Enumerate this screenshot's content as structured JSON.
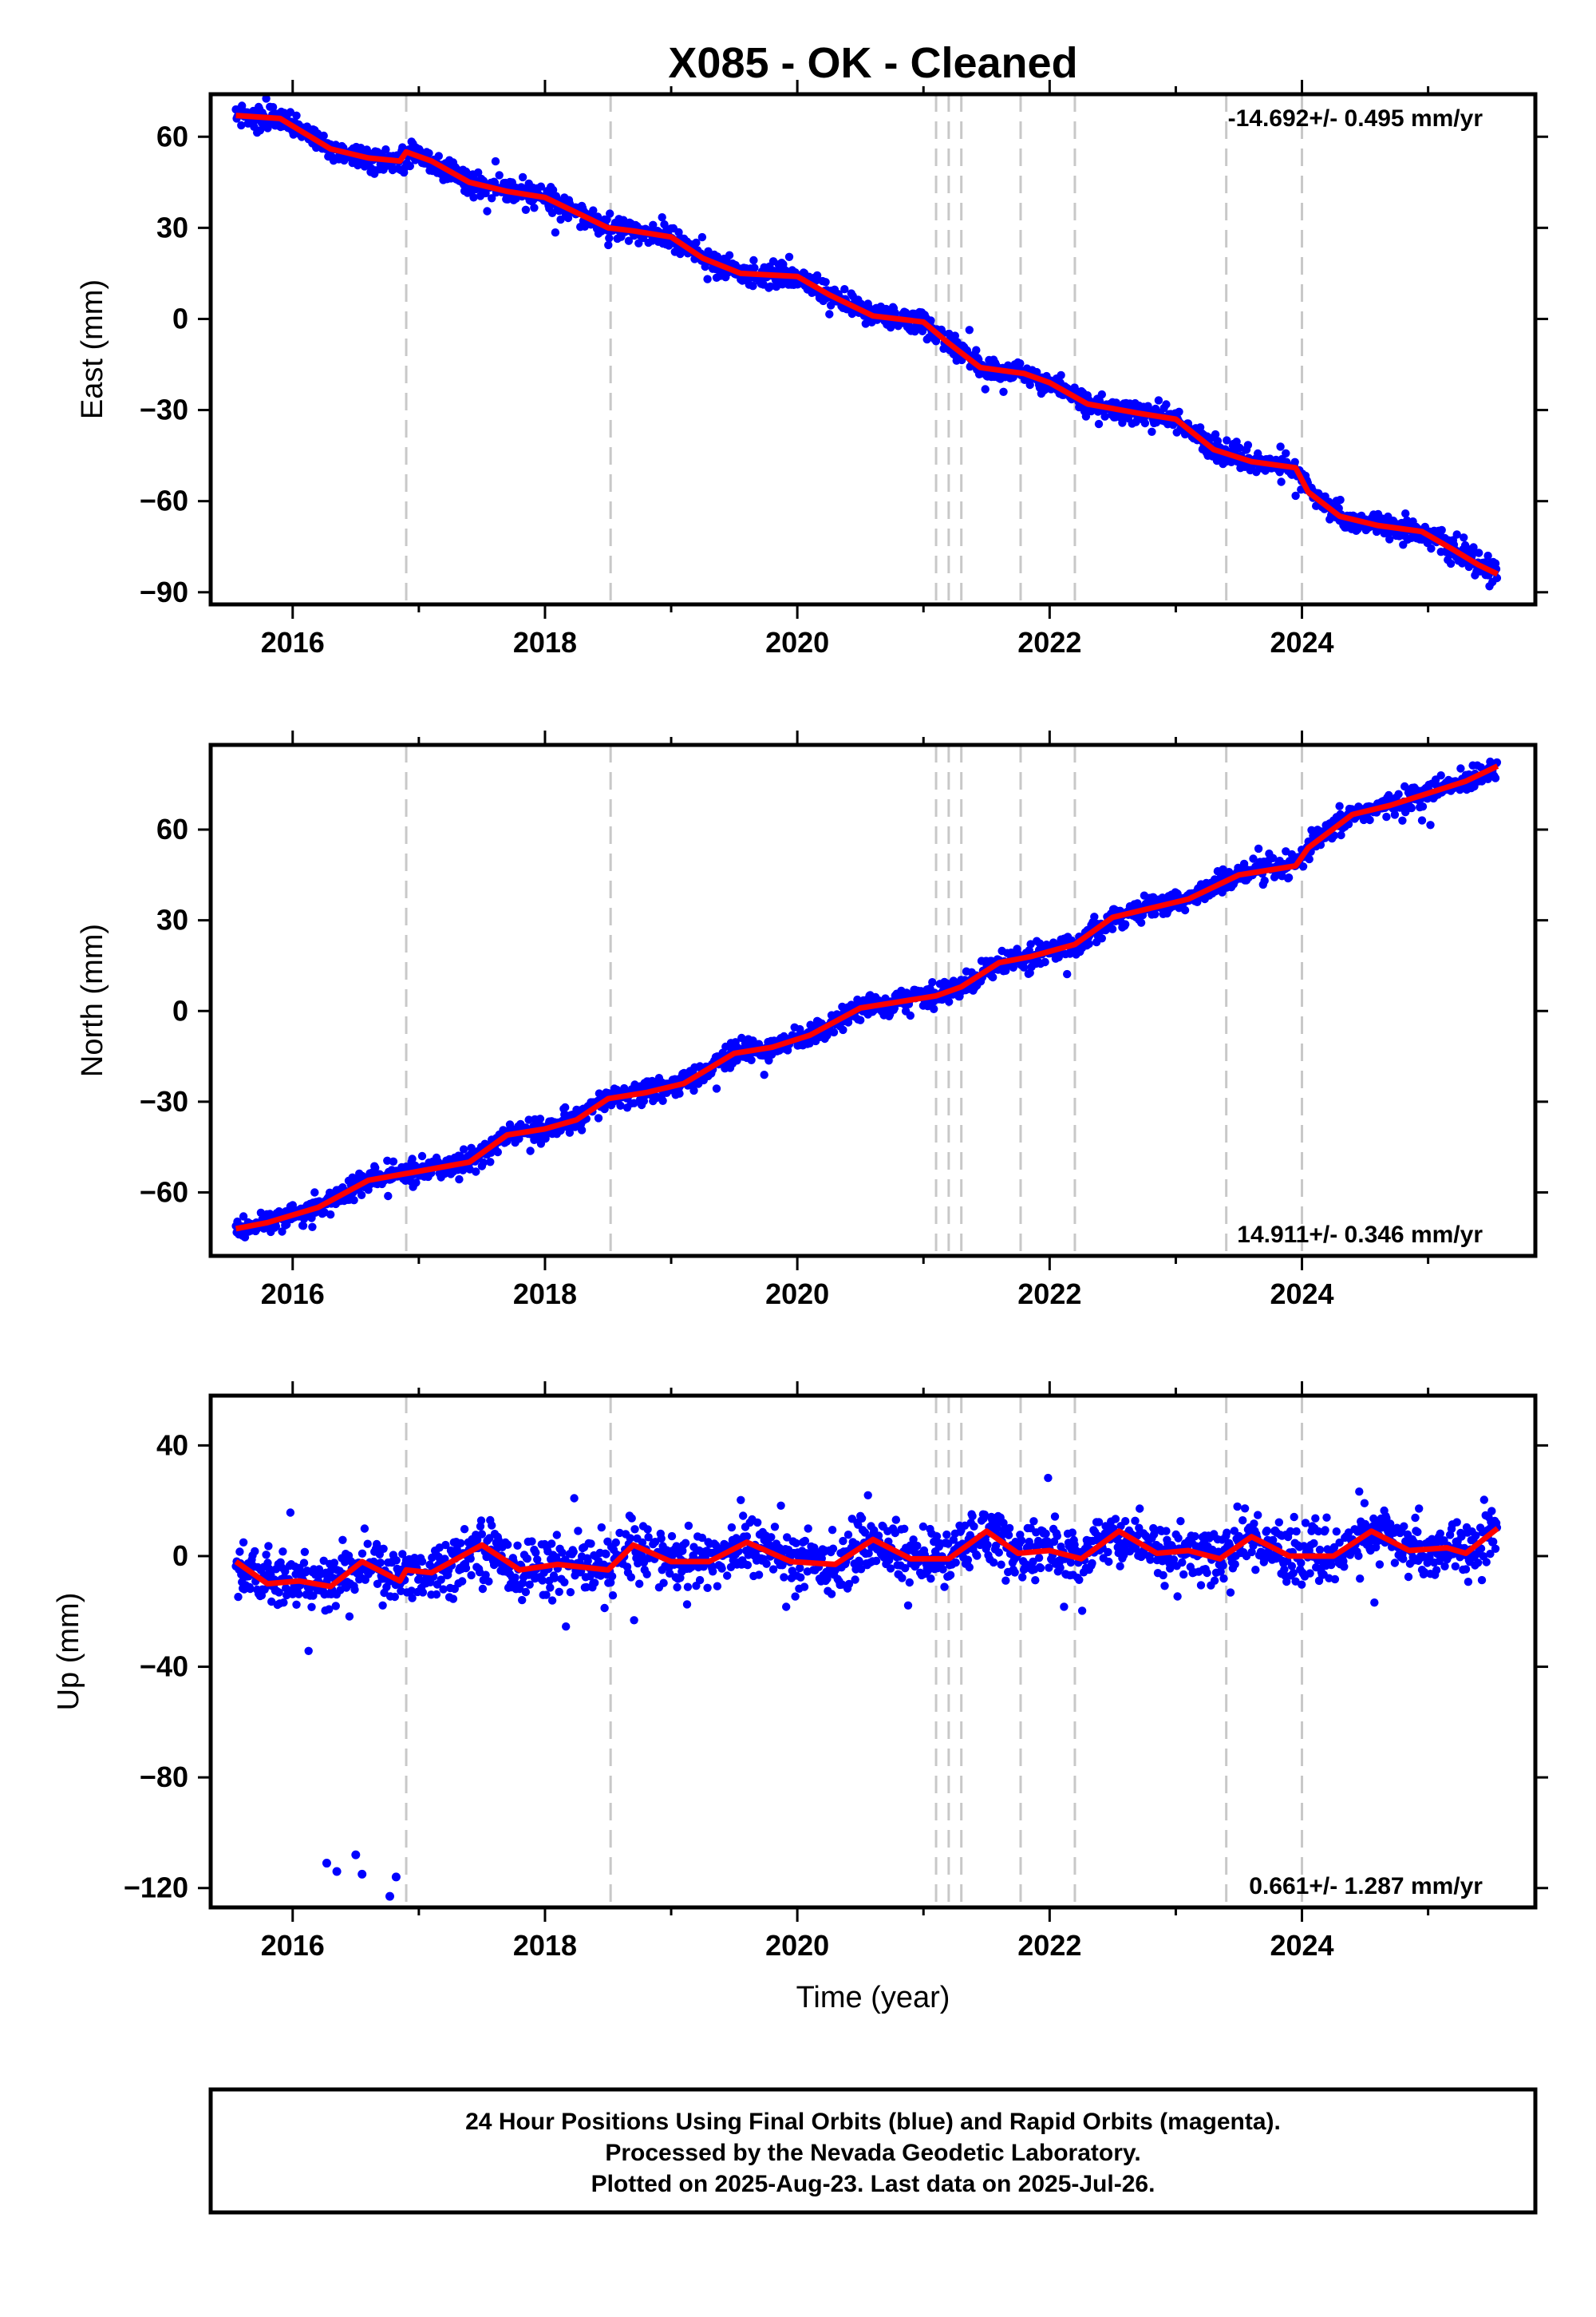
{
  "title": "X085  - OK - Cleaned",
  "colors": {
    "points": "#0000ff",
    "fit": "#ff0000",
    "breaks": "#c8c8c8",
    "frame": "#000000"
  },
  "footer": {
    "line1": "24 Hour Positions Using Final Orbits (blue) and Rapid Orbits (magenta).",
    "line2": "Processed by the Nevada Geodetic Laboratory.",
    "line3": "Plotted on 2025-Aug-23. Last data on 2025-Jul-26."
  },
  "chart_data": [
    {
      "type": "scatter",
      "ylabel": "East (mm)",
      "xlabel": "",
      "rate_label": "-14.692+/- 0.495 mm/yr",
      "xlim": [
        2015.35,
        2025.85
      ],
      "ylim": [
        -94,
        74
      ],
      "yticks": [
        60,
        30,
        0,
        -30,
        -60,
        -90
      ],
      "yticklabels": [
        "60",
        "30",
        "0",
        "−30",
        "−60",
        "−90"
      ],
      "xticks": [
        2016,
        2018,
        2020,
        2022,
        2024
      ],
      "xticklabels": [
        "2016",
        "2018",
        "2020",
        "2022",
        "2024"
      ],
      "breaks": [
        2016.9,
        2018.52,
        2021.1,
        2021.2,
        2021.3,
        2021.77,
        2022.2,
        2023.4,
        2024.0
      ],
      "fit": [
        [
          2015.55,
          67
        ],
        [
          2015.9,
          66
        ],
        [
          2016.1,
          61
        ],
        [
          2016.3,
          56
        ],
        [
          2016.6,
          53
        ],
        [
          2016.85,
          52
        ],
        [
          2016.9,
          55
        ],
        [
          2017.1,
          52
        ],
        [
          2017.4,
          45
        ],
        [
          2017.7,
          42
        ],
        [
          2018.0,
          40
        ],
        [
          2018.2,
          36
        ],
        [
          2018.5,
          30
        ],
        [
          2018.7,
          29
        ],
        [
          2019.0,
          27
        ],
        [
          2019.25,
          20
        ],
        [
          2019.55,
          15
        ],
        [
          2020.0,
          14
        ],
        [
          2020.25,
          8
        ],
        [
          2020.6,
          1
        ],
        [
          2021.0,
          -1
        ],
        [
          2021.2,
          -8
        ],
        [
          2021.45,
          -16
        ],
        [
          2021.8,
          -18
        ],
        [
          2022.0,
          -21
        ],
        [
          2022.3,
          -28
        ],
        [
          2022.7,
          -31
        ],
        [
          2023.0,
          -33
        ],
        [
          2023.3,
          -43
        ],
        [
          2023.6,
          -47
        ],
        [
          2023.95,
          -49
        ],
        [
          2024.05,
          -57
        ],
        [
          2024.3,
          -65
        ],
        [
          2024.6,
          -68
        ],
        [
          2024.95,
          -70
        ],
        [
          2025.2,
          -76
        ],
        [
          2025.4,
          -81
        ],
        [
          2025.55,
          -84
        ]
      ]
    },
    {
      "type": "scatter",
      "ylabel": "North (mm)",
      "xlabel": "",
      "rate_label": "14.911+/- 0.346 mm/yr",
      "xlim": [
        2015.35,
        2025.85
      ],
      "ylim": [
        -81,
        88
      ],
      "yticks": [
        60,
        30,
        0,
        -30,
        -60
      ],
      "yticklabels": [
        "60",
        "30",
        "0",
        "−30",
        "−60"
      ],
      "xticks": [
        2016,
        2018,
        2020,
        2022,
        2024
      ],
      "xticklabels": [
        "2016",
        "2018",
        "2020",
        "2022",
        "2024"
      ],
      "breaks": [
        2016.9,
        2018.52,
        2021.1,
        2021.2,
        2021.3,
        2021.77,
        2022.2,
        2023.4,
        2024.0
      ],
      "fit": [
        [
          2015.55,
          -72
        ],
        [
          2015.8,
          -70
        ],
        [
          2016.2,
          -65
        ],
        [
          2016.6,
          -56
        ],
        [
          2017.0,
          -53
        ],
        [
          2017.4,
          -50
        ],
        [
          2017.7,
          -41
        ],
        [
          2018.0,
          -39
        ],
        [
          2018.25,
          -36
        ],
        [
          2018.5,
          -29
        ],
        [
          2018.8,
          -27
        ],
        [
          2019.1,
          -24
        ],
        [
          2019.5,
          -14
        ],
        [
          2019.8,
          -12
        ],
        [
          2020.1,
          -8
        ],
        [
          2020.5,
          1
        ],
        [
          2020.8,
          3
        ],
        [
          2021.1,
          5
        ],
        [
          2021.3,
          8
        ],
        [
          2021.6,
          16
        ],
        [
          2021.85,
          18
        ],
        [
          2022.2,
          22
        ],
        [
          2022.5,
          31
        ],
        [
          2022.8,
          34
        ],
        [
          2023.1,
          37
        ],
        [
          2023.5,
          45
        ],
        [
          2023.95,
          48
        ],
        [
          2024.05,
          54
        ],
        [
          2024.4,
          65
        ],
        [
          2024.7,
          68
        ],
        [
          2025.0,
          72
        ],
        [
          2025.3,
          76
        ],
        [
          2025.55,
          81
        ]
      ]
    },
    {
      "type": "scatter",
      "ylabel": "Up (mm)",
      "xlabel": "Time (year)",
      "rate_label": "0.661+/- 1.287 mm/yr",
      "xlim": [
        2015.35,
        2025.85
      ],
      "ylim": [
        -127,
        58
      ],
      "yticks": [
        40,
        0,
        -40,
        -80,
        -120
      ],
      "yticklabels": [
        "40",
        "0",
        "−40",
        "−80",
        "−120"
      ],
      "xticks": [
        2016,
        2018,
        2020,
        2022,
        2024
      ],
      "xticklabels": [
        "2016",
        "2018",
        "2020",
        "2022",
        "2024"
      ],
      "breaks": [
        2016.9,
        2018.52,
        2021.1,
        2021.2,
        2021.3,
        2021.77,
        2022.2,
        2023.4,
        2024.0
      ],
      "fit": [
        [
          2015.55,
          -2
        ],
        [
          2015.8,
          -10
        ],
        [
          2016.05,
          -9
        ],
        [
          2016.3,
          -11
        ],
        [
          2016.55,
          -2
        ],
        [
          2016.85,
          -9
        ],
        [
          2016.9,
          -5
        ],
        [
          2017.1,
          -6
        ],
        [
          2017.5,
          4
        ],
        [
          2017.8,
          -5
        ],
        [
          2018.1,
          -3
        ],
        [
          2018.5,
          -5
        ],
        [
          2018.7,
          4
        ],
        [
          2019.0,
          -2
        ],
        [
          2019.3,
          -2
        ],
        [
          2019.6,
          5
        ],
        [
          2019.95,
          -2
        ],
        [
          2020.3,
          -3
        ],
        [
          2020.6,
          6
        ],
        [
          2020.9,
          -1
        ],
        [
          2021.2,
          -1
        ],
        [
          2021.5,
          9
        ],
        [
          2021.75,
          1
        ],
        [
          2022.0,
          2
        ],
        [
          2022.25,
          -1
        ],
        [
          2022.55,
          9
        ],
        [
          2022.85,
          1
        ],
        [
          2023.1,
          2
        ],
        [
          2023.35,
          -1
        ],
        [
          2023.6,
          7
        ],
        [
          2023.9,
          0
        ],
        [
          2024.25,
          0
        ],
        [
          2024.55,
          9
        ],
        [
          2024.85,
          2
        ],
        [
          2025.15,
          3
        ],
        [
          2025.3,
          1
        ],
        [
          2025.55,
          10
        ]
      ],
      "outliers": [
        [
          2016.27,
          -111
        ],
        [
          2016.35,
          -114
        ],
        [
          2016.5,
          -108
        ],
        [
          2016.55,
          -115
        ],
        [
          2016.77,
          -123
        ],
        [
          2016.82,
          -116
        ]
      ]
    }
  ]
}
